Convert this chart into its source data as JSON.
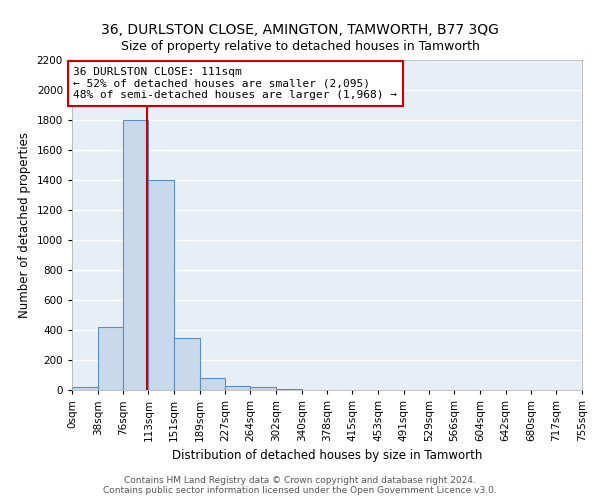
{
  "title_line1": "36, DURLSTON CLOSE, AMINGTON, TAMWORTH, B77 3QG",
  "title_line2": "Size of property relative to detached houses in Tamworth",
  "xlabel": "Distribution of detached houses by size in Tamworth",
  "ylabel": "Number of detached properties",
  "bin_edges": [
    0,
    38,
    76,
    113,
    151,
    189,
    227,
    264,
    302,
    340,
    378,
    415,
    453,
    491,
    529,
    566,
    604,
    642,
    680,
    717,
    755
  ],
  "bar_heights": [
    20,
    420,
    1800,
    1400,
    350,
    80,
    30,
    20,
    5,
    2,
    1,
    1,
    0,
    0,
    0,
    0,
    0,
    0,
    0,
    0
  ],
  "bar_color": "#c9d9ec",
  "bar_edge_color": "#5a8fc0",
  "bg_color": "#e8eef5",
  "grid_color": "#ffffff",
  "property_size": 111,
  "vline_color": "#cc0000",
  "annotation_text": "36 DURLSTON CLOSE: 111sqm\n← 52% of detached houses are smaller (2,095)\n48% of semi-detached houses are larger (1,968) →",
  "annotation_box_color": "#ffffff",
  "annotation_box_edge": "#cc0000",
  "ylim": [
    0,
    2200
  ],
  "yticks": [
    0,
    200,
    400,
    600,
    800,
    1000,
    1200,
    1400,
    1600,
    1800,
    2000,
    2200
  ],
  "footer_line1": "Contains HM Land Registry data © Crown copyright and database right 2024.",
  "footer_line2": "Contains public sector information licensed under the Open Government Licence v3.0.",
  "title_fontsize": 10,
  "subtitle_fontsize": 9,
  "axis_label_fontsize": 8.5,
  "tick_fontsize": 7.5,
  "annotation_fontsize": 8,
  "footer_fontsize": 6.5
}
